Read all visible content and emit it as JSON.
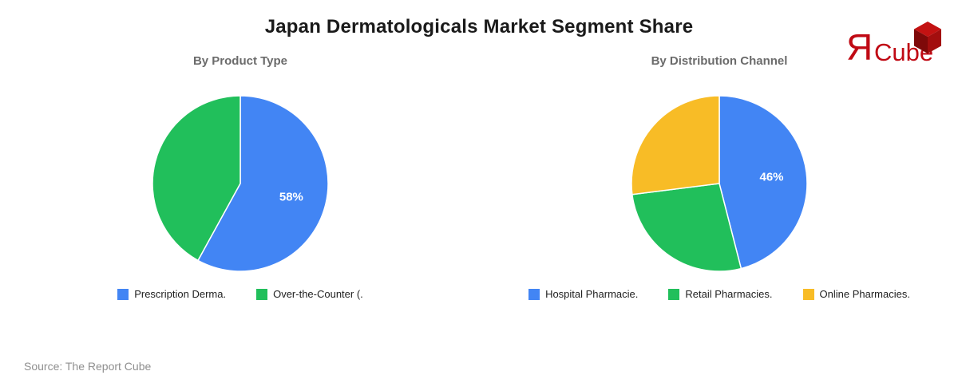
{
  "title": "Japan Dermatologicals Market Segment Share",
  "source": "Source: The Report Cube",
  "logo": {
    "r_letter": "Я",
    "cube_text": "Cube",
    "color": "#c00914"
  },
  "colors": {
    "blue": "#4285F4",
    "green": "#21BF5B",
    "yellow": "#F8BC26",
    "title_text": "#1a1a1a",
    "subtitle_text": "#6b6b6b",
    "source_text": "#8f8f8f",
    "slice_divider": "#ffffff"
  },
  "chart_data": [
    {
      "type": "pie",
      "title": "By Product Type",
      "legend_position": "bottom",
      "slices": [
        {
          "label": "Prescription Derma.",
          "value": 58,
          "color": "#4285F4",
          "data_label": "58%"
        },
        {
          "label": "Over-the-Counter (.",
          "value": 42,
          "color": "#21BF5B",
          "data_label": ""
        }
      ]
    },
    {
      "type": "pie",
      "title": "By Distribution Channel",
      "legend_position": "bottom",
      "slices": [
        {
          "label": "Hospital Pharmacie.",
          "value": 46,
          "color": "#4285F4",
          "data_label": "46%"
        },
        {
          "label": "Retail Pharmacies.",
          "value": 27,
          "color": "#21BF5B",
          "data_label": ""
        },
        {
          "label": "Online Pharmacies.",
          "value": 27,
          "color": "#F8BC26",
          "data_label": ""
        }
      ]
    }
  ]
}
